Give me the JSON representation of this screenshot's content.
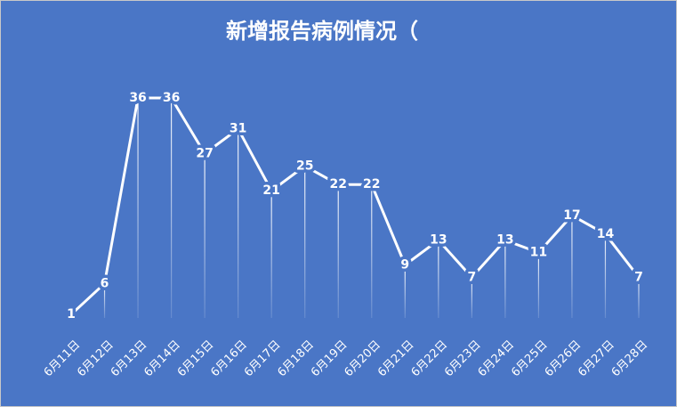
{
  "chart_data": {
    "type": "line",
    "title": "新增报告病例情况（",
    "categories": [
      "6月11日",
      "6月12日",
      "6月13日",
      "6月14日",
      "6月15日",
      "6月16日",
      "6月17日",
      "6月18日",
      "6月19日",
      "6月20日",
      "6月21日",
      "6月22日",
      "6月23日",
      "6月24日",
      "6月25日",
      "6月26日",
      "6月27日",
      "6月28日"
    ],
    "values": [
      1,
      6,
      36,
      36,
      27,
      31,
      21,
      25,
      22,
      22,
      9,
      13,
      7,
      13,
      11,
      17,
      14,
      7
    ],
    "color": "#ffffff",
    "background": "#4a76c6"
  }
}
